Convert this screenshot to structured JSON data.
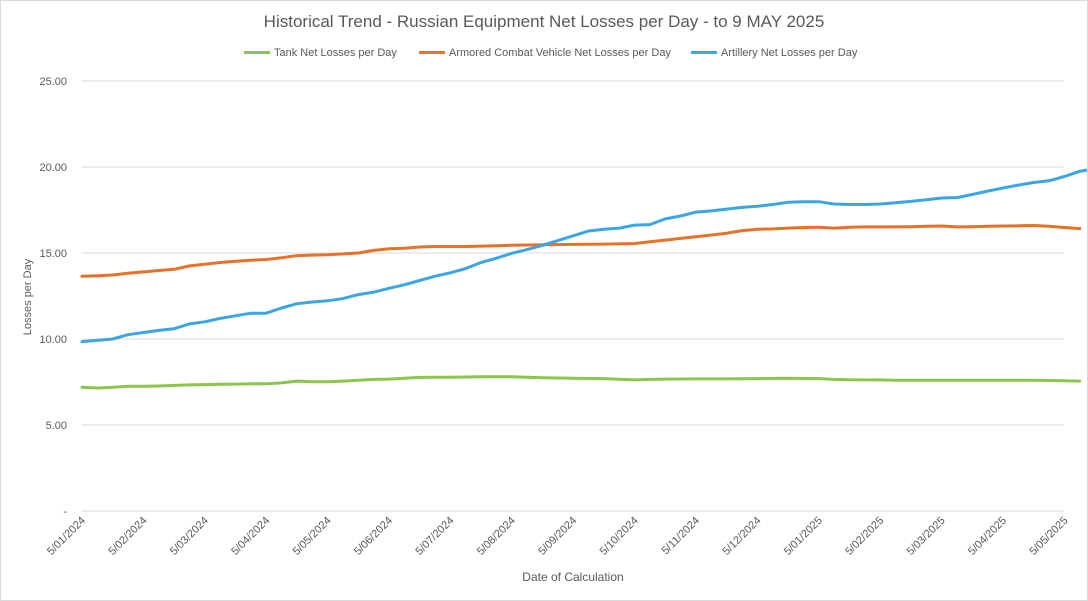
{
  "chart_data": {
    "type": "line",
    "title": "Historical Trend - Russian Equipment Net Losses per Day - to 9 MAY 2025",
    "xlabel": "Date of Calculation",
    "ylabel": "Losses per Day",
    "ylim": [
      0,
      25
    ],
    "yticks": [
      "-",
      "5.00",
      "10.00",
      "15.00",
      "20.00",
      "25.00"
    ],
    "ytick_values": [
      0,
      5,
      10,
      15,
      20,
      25
    ],
    "grid": true,
    "legend_position": "top",
    "x_tick_labels": [
      "5/01/2024",
      "5/02/2024",
      "5/03/2024",
      "5/04/2024",
      "5/05/2024",
      "5/06/2024",
      "5/07/2024",
      "5/08/2024",
      "5/09/2024",
      "5/10/2024",
      "5/11/2024",
      "5/12/2024",
      "5/01/2025",
      "5/02/2025",
      "5/03/2025",
      "5/04/2025",
      "5/05/2025"
    ],
    "series": [
      {
        "name": "Tank Net Losses per Day",
        "color": "#8cc44f",
        "points": [
          [
            0,
            7.2
          ],
          [
            0.25,
            7.15
          ],
          [
            0.5,
            7.2
          ],
          [
            0.75,
            7.25
          ],
          [
            1,
            7.25
          ],
          [
            1.25,
            7.27
          ],
          [
            1.5,
            7.3
          ],
          [
            1.75,
            7.33
          ],
          [
            2,
            7.35
          ],
          [
            2.25,
            7.37
          ],
          [
            2.5,
            7.38
          ],
          [
            2.75,
            7.4
          ],
          [
            3,
            7.4
          ],
          [
            3.25,
            7.45
          ],
          [
            3.5,
            7.55
          ],
          [
            3.75,
            7.52
          ],
          [
            4,
            7.52
          ],
          [
            4.25,
            7.55
          ],
          [
            4.5,
            7.6
          ],
          [
            4.75,
            7.65
          ],
          [
            5,
            7.67
          ],
          [
            5.25,
            7.72
          ],
          [
            5.5,
            7.77
          ],
          [
            5.75,
            7.78
          ],
          [
            6,
            7.78
          ],
          [
            6.5,
            7.8
          ],
          [
            7,
            7.8
          ],
          [
            7.5,
            7.75
          ],
          [
            8,
            7.72
          ],
          [
            8.5,
            7.7
          ],
          [
            9,
            7.62
          ],
          [
            9.25,
            7.65
          ],
          [
            9.5,
            7.67
          ],
          [
            10,
            7.68
          ],
          [
            10.5,
            7.68
          ],
          [
            11,
            7.7
          ],
          [
            11.5,
            7.72
          ],
          [
            12,
            7.7
          ],
          [
            12.25,
            7.65
          ],
          [
            12.5,
            7.63
          ],
          [
            13,
            7.62
          ],
          [
            13.25,
            7.6
          ],
          [
            13.5,
            7.6
          ],
          [
            14,
            7.6
          ],
          [
            14.5,
            7.6
          ],
          [
            15,
            7.6
          ],
          [
            15.5,
            7.6
          ],
          [
            16,
            7.57
          ],
          [
            16.25,
            7.55
          ]
        ]
      },
      {
        "name": "Armored Combat Vehicle Net Losses per Day",
        "color": "#e8722a",
        "points": [
          [
            0,
            13.65
          ],
          [
            0.25,
            13.68
          ],
          [
            0.5,
            13.72
          ],
          [
            0.75,
            13.82
          ],
          [
            1,
            13.9
          ],
          [
            1.25,
            13.98
          ],
          [
            1.5,
            14.05
          ],
          [
            1.75,
            14.25
          ],
          [
            2,
            14.35
          ],
          [
            2.25,
            14.45
          ],
          [
            2.5,
            14.52
          ],
          [
            2.75,
            14.58
          ],
          [
            3,
            14.62
          ],
          [
            3.25,
            14.72
          ],
          [
            3.5,
            14.85
          ],
          [
            3.75,
            14.88
          ],
          [
            4,
            14.9
          ],
          [
            4.25,
            14.95
          ],
          [
            4.5,
            15.0
          ],
          [
            4.75,
            15.15
          ],
          [
            5,
            15.25
          ],
          [
            5.25,
            15.28
          ],
          [
            5.5,
            15.35
          ],
          [
            5.75,
            15.38
          ],
          [
            6,
            15.38
          ],
          [
            6.25,
            15.38
          ],
          [
            6.5,
            15.4
          ],
          [
            6.75,
            15.42
          ],
          [
            7,
            15.45
          ],
          [
            7.5,
            15.48
          ],
          [
            8,
            15.5
          ],
          [
            8.5,
            15.52
          ],
          [
            9,
            15.55
          ],
          [
            9.25,
            15.65
          ],
          [
            9.5,
            15.75
          ],
          [
            9.75,
            15.85
          ],
          [
            10,
            15.95
          ],
          [
            10.5,
            16.15
          ],
          [
            10.75,
            16.3
          ],
          [
            11,
            16.38
          ],
          [
            11.25,
            16.4
          ],
          [
            11.5,
            16.45
          ],
          [
            11.75,
            16.48
          ],
          [
            12,
            16.5
          ],
          [
            12.25,
            16.45
          ],
          [
            12.5,
            16.5
          ],
          [
            12.75,
            16.52
          ],
          [
            13,
            16.52
          ],
          [
            13.5,
            16.53
          ],
          [
            13.75,
            16.55
          ],
          [
            14,
            16.57
          ],
          [
            14.25,
            16.52
          ],
          [
            14.5,
            16.53
          ],
          [
            14.75,
            16.55
          ],
          [
            15,
            16.57
          ],
          [
            15.25,
            16.58
          ],
          [
            15.5,
            16.6
          ],
          [
            15.75,
            16.55
          ],
          [
            16,
            16.48
          ],
          [
            16.25,
            16.42
          ]
        ]
      },
      {
        "name": "Artillery Net Losses per Day",
        "color": "#3ba6e0",
        "points": [
          [
            0,
            9.85
          ],
          [
            0.25,
            9.92
          ],
          [
            0.5,
            10.0
          ],
          [
            0.75,
            10.25
          ],
          [
            1,
            10.38
          ],
          [
            1.25,
            10.5
          ],
          [
            1.5,
            10.6
          ],
          [
            1.75,
            10.88
          ],
          [
            2,
            11.0
          ],
          [
            2.25,
            11.2
          ],
          [
            2.5,
            11.35
          ],
          [
            2.75,
            11.5
          ],
          [
            3,
            11.5
          ],
          [
            3.25,
            11.8
          ],
          [
            3.5,
            12.05
          ],
          [
            3.75,
            12.15
          ],
          [
            4,
            12.22
          ],
          [
            4.25,
            12.35
          ],
          [
            4.5,
            12.58
          ],
          [
            4.75,
            12.72
          ],
          [
            5,
            12.95
          ],
          [
            5.25,
            13.15
          ],
          [
            5.5,
            13.4
          ],
          [
            5.75,
            13.65
          ],
          [
            6,
            13.85
          ],
          [
            6.25,
            14.1
          ],
          [
            6.5,
            14.45
          ],
          [
            6.75,
            14.7
          ],
          [
            7,
            14.98
          ],
          [
            7.25,
            15.2
          ],
          [
            7.5,
            15.45
          ],
          [
            7.75,
            15.72
          ],
          [
            8,
            16.0
          ],
          [
            8.25,
            16.28
          ],
          [
            8.5,
            16.38
          ],
          [
            8.75,
            16.45
          ],
          [
            9,
            16.62
          ],
          [
            9.25,
            16.65
          ],
          [
            9.5,
            16.98
          ],
          [
            9.75,
            17.15
          ],
          [
            10,
            17.38
          ],
          [
            10.25,
            17.45
          ],
          [
            10.5,
            17.55
          ],
          [
            10.75,
            17.65
          ],
          [
            11,
            17.72
          ],
          [
            11.25,
            17.82
          ],
          [
            11.5,
            17.95
          ],
          [
            11.75,
            17.98
          ],
          [
            12,
            17.98
          ],
          [
            12.25,
            17.85
          ],
          [
            12.5,
            17.82
          ],
          [
            12.75,
            17.82
          ],
          [
            13,
            17.85
          ],
          [
            13.25,
            17.92
          ],
          [
            13.5,
            18.0
          ],
          [
            13.75,
            18.1
          ],
          [
            14,
            18.2
          ],
          [
            14.25,
            18.22
          ],
          [
            14.5,
            18.4
          ],
          [
            14.75,
            18.6
          ],
          [
            15,
            18.78
          ],
          [
            15.25,
            18.95
          ],
          [
            15.5,
            19.1
          ],
          [
            15.75,
            19.2
          ],
          [
            16,
            19.45
          ],
          [
            16.25,
            19.75
          ],
          [
            16.5,
            19.9
          ],
          [
            16.75,
            20.05
          ],
          [
            17,
            20.3
          ],
          [
            17.25,
            20.45
          ],
          [
            17.5,
            20.6
          ],
          [
            17.75,
            20.8
          ]
        ]
      }
    ]
  }
}
